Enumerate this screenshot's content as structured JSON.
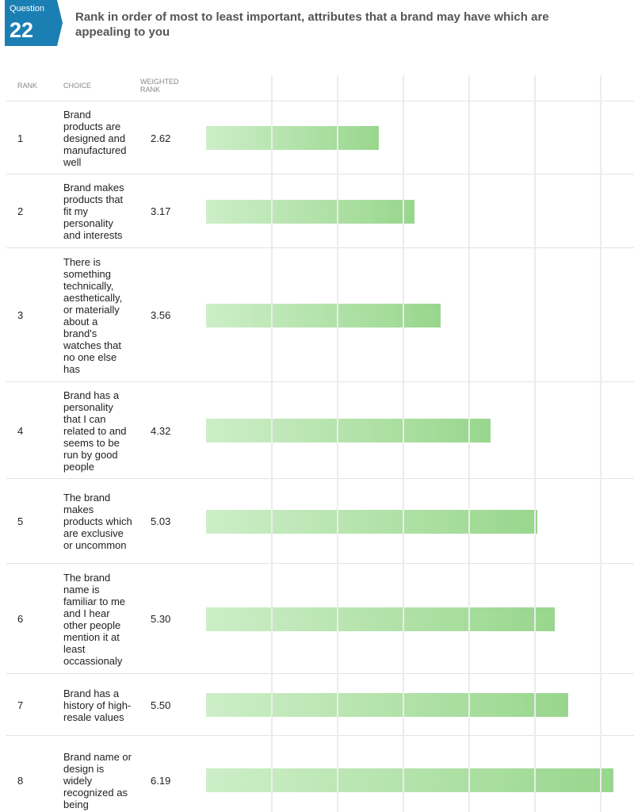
{
  "header": {
    "badge_label": "Question",
    "number": "22",
    "title": "Rank in order of most to least important, attributes that a brand may have which are appealing to you"
  },
  "chart_data": {
    "type": "bar",
    "columns": [
      "RANK",
      "CHOICE",
      "WEIGHTED RANK"
    ],
    "ranks": [
      "1",
      "2",
      "3",
      "4",
      "5",
      "6",
      "7",
      "8"
    ],
    "categories": [
      "Brand products are designed and manufactured well",
      "Brand makes products that fit my personality and interests",
      "There is something technically, aesthetically, or materially about a brand's watches that no one else has",
      "Brand has a personality that I can related to and seems to be run by good people",
      "The brand makes products which are exclusive or uncommon",
      "The brand name is familiar to me and I hear other people mention it at least occassionaly",
      "Brand has a history of high-resale values",
      "Brand name or design is widely recognized as being"
    ],
    "values": [
      2.62,
      3.17,
      3.56,
      4.32,
      5.03,
      5.3,
      5.5,
      6.19
    ],
    "value_labels": [
      "2.62",
      "3.17",
      "3.56",
      "4.32",
      "5.03",
      "5.30",
      "5.50",
      "6.19"
    ],
    "color": "#a9de9f",
    "xlim": [
      0,
      6.5
    ],
    "gridlines": [
      1,
      2,
      3,
      4,
      5,
      6
    ],
    "grid": true
  }
}
